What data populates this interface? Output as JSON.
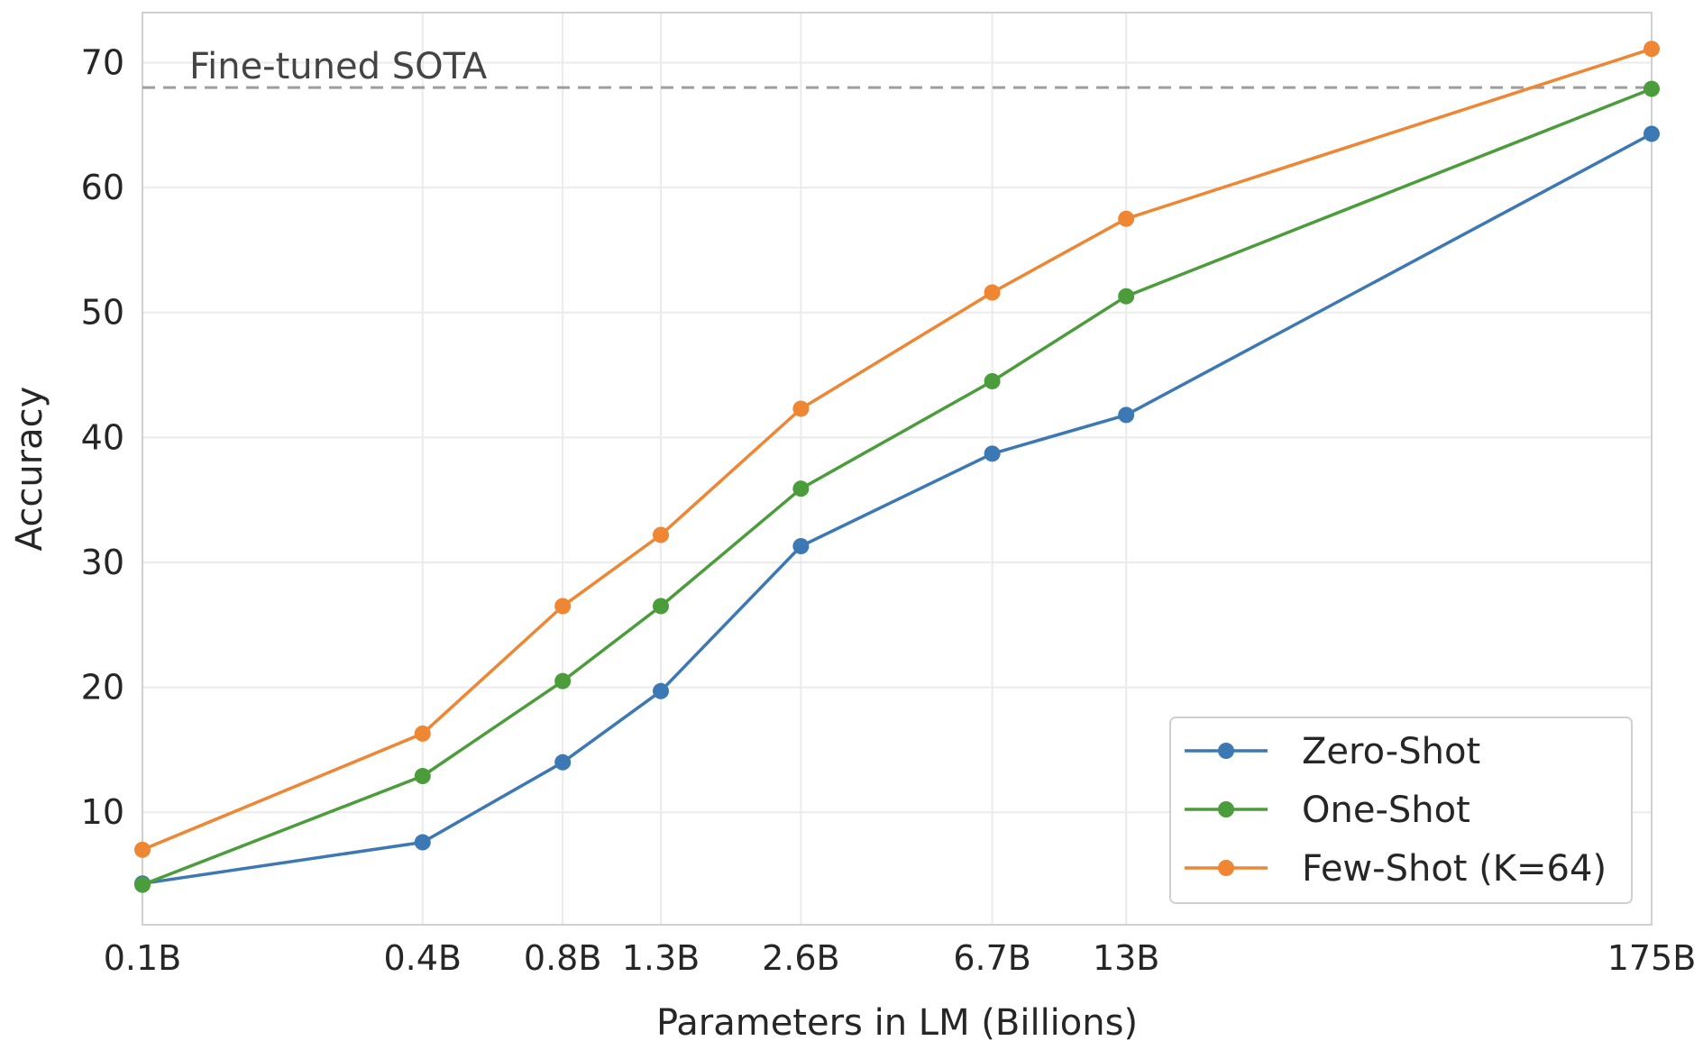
{
  "chart_data": {
    "type": "line",
    "title": "",
    "xlabel": "Parameters in LM (Billions)",
    "ylabel": "Accuracy",
    "categories": [
      "0.1B",
      "0.4B",
      "0.8B",
      "1.3B",
      "2.6B",
      "6.7B",
      "13B",
      "175B"
    ],
    "x_scale": "log",
    "x_values": [
      0.1,
      0.4,
      0.8,
      1.3,
      2.6,
      6.7,
      13,
      175
    ],
    "xlim": [
      0.1,
      175
    ],
    "ylim": [
      1,
      74
    ],
    "yticks": [
      10,
      20,
      30,
      40,
      50,
      60,
      70
    ],
    "grid": true,
    "legend_position": "bottom-right",
    "series": [
      {
        "name": "Zero-Shot",
        "color": "#3c78b4",
        "values": [
          4.3,
          7.6,
          14.0,
          19.7,
          31.3,
          38.7,
          41.8,
          64.3
        ]
      },
      {
        "name": "One-Shot",
        "color": "#4b9c3b",
        "values": [
          4.2,
          12.9,
          20.5,
          26.5,
          35.9,
          44.5,
          51.3,
          67.9
        ]
      },
      {
        "name": "Few-Shot (K=64)",
        "color": "#ee8633",
        "values": [
          7.0,
          16.3,
          26.5,
          32.2,
          42.3,
          51.6,
          57.5,
          71.1
        ]
      }
    ],
    "reference_line": {
      "label": "Fine-tuned SOTA",
      "value": 68.0,
      "color": "#9e9e9e"
    }
  }
}
